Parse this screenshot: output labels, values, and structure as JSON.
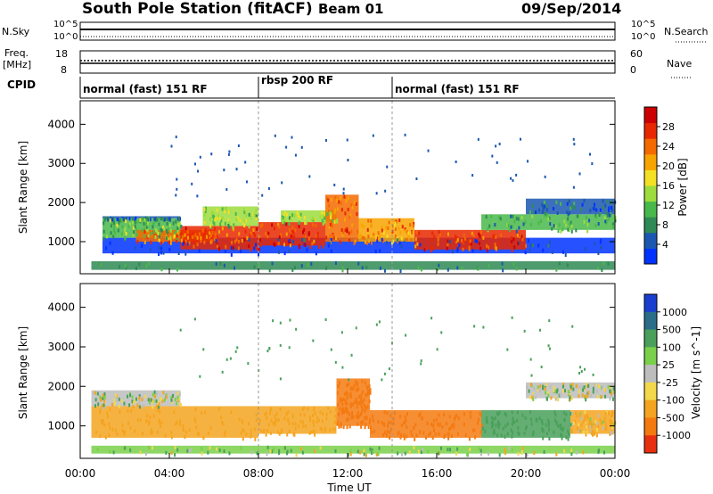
{
  "header": {
    "title": "South Pole Station (fitACF)",
    "beam": "Beam 01",
    "date": "09/Sep/2014"
  },
  "top_panel": {
    "left_label": "N.Sky",
    "left_ticks": [
      "10^5",
      "10^0"
    ],
    "right_ticks": [
      "10^5",
      "10^0"
    ],
    "right_label": "N.Search"
  },
  "freq_panel": {
    "left_label_1": "Freq.",
    "left_label_2": "[MHz]",
    "left_ticks": [
      "18",
      "8"
    ],
    "right_ticks": [
      "60",
      "0"
    ],
    "right_label": "Nave"
  },
  "cpid_panel": {
    "label": "CPID",
    "segments": [
      {
        "text": "normal (fast) 151 RF",
        "start_h": 0,
        "end_h": 8
      },
      {
        "text": "rbsp 200 RF",
        "start_h": 8,
        "end_h": 14
      },
      {
        "text": "normal (fast) 151 RF",
        "start_h": 14,
        "end_h": 24
      }
    ]
  },
  "colors": {
    "power": [
      "#0033ff",
      "#1b57b0",
      "#2f8a55",
      "#49b84a",
      "#9ddc3d",
      "#f4e024",
      "#f8a400",
      "#f46a00",
      "#e82800",
      "#cc0000"
    ],
    "velocity": [
      "#1a3fcf",
      "#2a6e8a",
      "#4aa05a",
      "#7ad04a",
      "#bdbdbd",
      "#f2d84a",
      "#f4a420",
      "#f47a10",
      "#e83010"
    ]
  },
  "chart_data": [
    {
      "type": "heatmap",
      "name": "power",
      "xlabel": "",
      "ylabel": "Slant Range [km]",
      "xlim_hours": [
        0,
        24
      ],
      "ylim_km": [
        180,
        4600
      ],
      "yticks": [
        1000,
        2000,
        3000,
        4000
      ],
      "colorbar": {
        "label": "Power [dB]",
        "ticks": [
          4,
          8,
          12,
          16,
          20,
          24,
          28
        ],
        "range": [
          0,
          32
        ]
      },
      "cells": [
        [
          1.0,
          24,
          700,
          1100,
          2
        ],
        [
          1.0,
          4.5,
          1100,
          1600,
          12
        ],
        [
          1.0,
          4.5,
          1600,
          1650,
          6
        ],
        [
          2.5,
          6.0,
          1000,
          1300,
          24
        ],
        [
          4.5,
          8.0,
          800,
          1400,
          26
        ],
        [
          5.5,
          8.0,
          1400,
          1900,
          14
        ],
        [
          8.0,
          11.0,
          900,
          1500,
          26
        ],
        [
          9.0,
          11.5,
          1500,
          1800,
          14
        ],
        [
          11.0,
          12.5,
          1000,
          2200,
          24
        ],
        [
          12.5,
          15.0,
          1000,
          1600,
          22
        ],
        [
          15.0,
          20.0,
          800,
          1300,
          26
        ],
        [
          18.0,
          24.0,
          1300,
          1700,
          10
        ],
        [
          20.0,
          24.0,
          1700,
          2100,
          6
        ],
        [
          0.5,
          24.0,
          280,
          500,
          8
        ]
      ]
    },
    {
      "type": "heatmap",
      "name": "velocity",
      "xlabel": "Time UT",
      "ylabel": "Slant Range [km]",
      "xlim_hours": [
        0,
        24
      ],
      "ylim_km": [
        180,
        4600
      ],
      "yticks": [
        1000,
        2000,
        3000,
        4000
      ],
      "xticks": [
        "00:00",
        "04:00",
        "08:00",
        "12:00",
        "16:00",
        "20:00",
        "00:00"
      ],
      "colorbar": {
        "label": "Velocity [m s^-1]",
        "ticks": [
          "1000",
          "500",
          "100",
          "25",
          "-25",
          "-100",
          "-500",
          "-1000"
        ]
      },
      "cells": [
        [
          0.5,
          8.0,
          700,
          1500,
          -300
        ],
        [
          0.5,
          4.5,
          1500,
          1900,
          10
        ],
        [
          8.0,
          11.5,
          800,
          1500,
          -300
        ],
        [
          11.5,
          13.0,
          1000,
          2200,
          -800
        ],
        [
          13.0,
          18.0,
          700,
          1400,
          -700
        ],
        [
          18.0,
          22.0,
          700,
          1400,
          300
        ],
        [
          22.0,
          24.0,
          800,
          1400,
          -150
        ],
        [
          20.0,
          24.0,
          1700,
          2100,
          10
        ],
        [
          0.5,
          24.0,
          300,
          500,
          50
        ]
      ]
    }
  ]
}
